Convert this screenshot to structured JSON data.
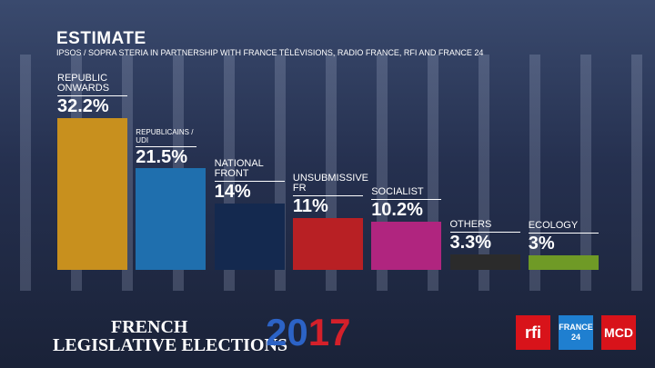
{
  "chart_data": {
    "type": "bar",
    "title": "ESTIMATE",
    "subtitle": "IPSOS / SOPRA STERIA IN PARTNERSHIP WITH FRANCE TÉLÉVISIONS, RADIO FRANCE, RFI AND FRANCE 24",
    "categories": [
      "REPUBLIC ONWARDS",
      "REPUBLICAINS / UDI",
      "NATIONAL FRONT",
      "UNSUBMISSIVE FR",
      "SOCIALIST",
      "OTHERS",
      "ECOLOGY"
    ],
    "values": [
      32.2,
      21.5,
      14,
      11,
      10.2,
      3.3,
      3
    ],
    "value_labels": [
      "32.2%",
      "21.5%",
      "14%",
      "11%",
      "10.2%",
      "3.3%",
      "3%"
    ],
    "colors": [
      "#c8901e",
      "#1f6fae",
      "#14294f",
      "#b82024",
      "#b0257f",
      "#2b2b2b",
      "#6f9a26"
    ]
  },
  "footer": {
    "line1": "FRENCH",
    "line2": "LEGISLATIVE ELECTIONS",
    "year": "2017",
    "logos": [
      "rfi",
      "FRANCE 24",
      "MCD"
    ]
  }
}
